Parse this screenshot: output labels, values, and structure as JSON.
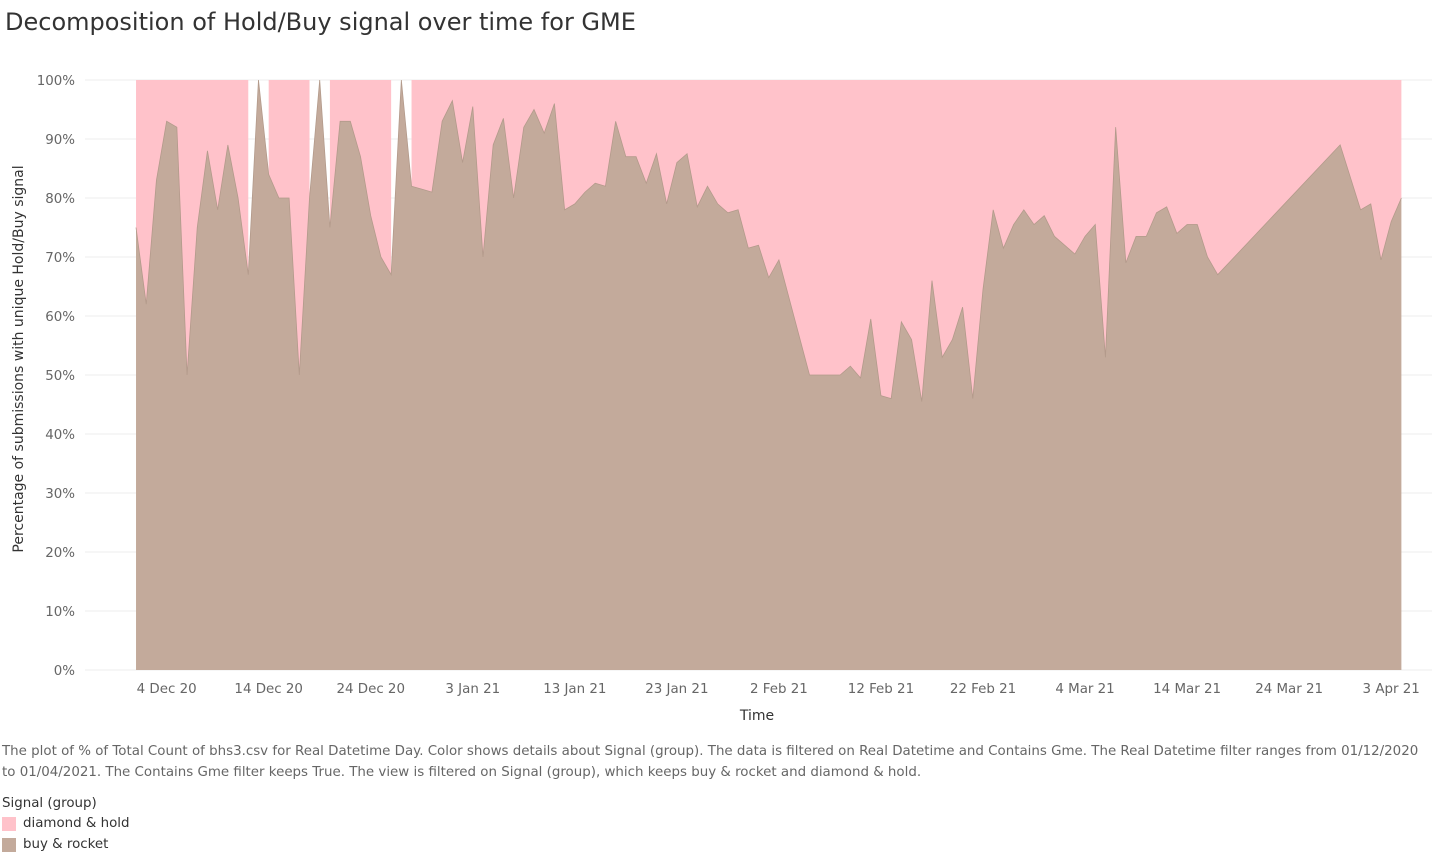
{
  "header": {
    "title": "Decomposition of Hold/Buy signal over time for GME"
  },
  "caption": "The plot of % of Total Count of bhs3.csv for Real Datetime Day.  Color shows details about Signal (group). The data is filtered on Real Datetime and Contains Gme. The Real Datetime filter ranges from 01/12/2020 to 01/04/2021. The Contains Gme filter keeps True. The view is filtered on Signal (group), which keeps buy & rocket and diamond & hold.",
  "legend": {
    "title": "Signal (group)",
    "items": [
      {
        "label": "diamond & hold",
        "color": "#ffc2ca"
      },
      {
        "label": "buy & rocket",
        "color": "#c3aa9b"
      }
    ]
  },
  "chart_data": {
    "type": "area",
    "stacked": true,
    "xlabel": "Time",
    "ylabel": "Percentage of submissions with unique Hold/Buy signal",
    "ylim": [
      0,
      100
    ],
    "yticks": [
      "100%",
      "90%",
      "80%",
      "70%",
      "60%",
      "50%",
      "40%",
      "30%",
      "20%",
      "10%",
      "0%"
    ],
    "xticks": [
      "4 Dec 20",
      "14 Dec 20",
      "24 Dec 20",
      "3 Jan 21",
      "13 Jan 21",
      "23 Jan 21",
      "2 Feb 21",
      "12 Feb 21",
      "22 Feb 21",
      "4 Mar 21",
      "14 Mar 21",
      "24 Mar 21",
      "3 Apr 21"
    ],
    "xtick_dates": [
      "2020-12-04",
      "2020-12-14",
      "2020-12-24",
      "2021-01-03",
      "2021-01-13",
      "2021-01-23",
      "2021-02-02",
      "2021-02-12",
      "2021-02-22",
      "2021-03-04",
      "2021-03-14",
      "2021-03-24",
      "2021-04-03"
    ],
    "xlim": [
      "2020-11-26",
      "2021-04-07"
    ],
    "grid": true,
    "series": [
      {
        "name": "buy & rocket",
        "color": "#c3aa9b",
        "points": [
          [
            "2020-12-01",
            75
          ],
          [
            "2020-12-02",
            62
          ],
          [
            "2020-12-03",
            83
          ],
          [
            "2020-12-04",
            93
          ],
          [
            "2020-12-05",
            92
          ],
          [
            "2020-12-06",
            50
          ],
          [
            "2020-12-07",
            75
          ],
          [
            "2020-12-08",
            88
          ],
          [
            "2020-12-09",
            78
          ],
          [
            "2020-12-10",
            89
          ],
          [
            "2020-12-11",
            80
          ],
          [
            "2020-12-12",
            67
          ],
          [
            "2020-12-13",
            100
          ],
          [
            "2020-12-14",
            84
          ],
          [
            "2020-12-15",
            80
          ],
          [
            "2020-12-16",
            80
          ],
          [
            "2020-12-17",
            50
          ],
          [
            "2020-12-18",
            80
          ],
          [
            "2020-12-19",
            100
          ],
          [
            "2020-12-20",
            75
          ],
          [
            "2020-12-21",
            93
          ],
          [
            "2020-12-22",
            93
          ],
          [
            "2020-12-23",
            87
          ],
          [
            "2020-12-24",
            77
          ],
          [
            "2020-12-25",
            70
          ],
          [
            "2020-12-26",
            67
          ],
          [
            "2020-12-27",
            100
          ],
          [
            "2020-12-28",
            82
          ],
          [
            "2020-12-29",
            81.5
          ],
          [
            "2020-12-30",
            81
          ],
          [
            "2020-12-31",
            93
          ],
          [
            "2021-01-01",
            96.5
          ],
          [
            "2021-01-02",
            86
          ],
          [
            "2021-01-03",
            95.5
          ],
          [
            "2021-01-04",
            70
          ],
          [
            "2021-01-05",
            89
          ],
          [
            "2021-01-06",
            93.5
          ],
          [
            "2021-01-07",
            80
          ],
          [
            "2021-01-08",
            92
          ],
          [
            "2021-01-09",
            95
          ],
          [
            "2021-01-10",
            91
          ],
          [
            "2021-01-11",
            96
          ],
          [
            "2021-01-12",
            78
          ],
          [
            "2021-01-13",
            79
          ],
          [
            "2021-01-14",
            81
          ],
          [
            "2021-01-15",
            82.5
          ],
          [
            "2021-01-16",
            82
          ],
          [
            "2021-01-17",
            93
          ],
          [
            "2021-01-18",
            87
          ],
          [
            "2021-01-19",
            87
          ],
          [
            "2021-01-20",
            82.5
          ],
          [
            "2021-01-21",
            87.5
          ],
          [
            "2021-01-22",
            79
          ],
          [
            "2021-01-23",
            86
          ],
          [
            "2021-01-24",
            87.5
          ],
          [
            "2021-01-25",
            78.5
          ],
          [
            "2021-01-26",
            82
          ],
          [
            "2021-01-27",
            79
          ],
          [
            "2021-01-28",
            77.5
          ],
          [
            "2021-01-29",
            78
          ],
          [
            "2021-01-30",
            71.5
          ],
          [
            "2021-01-31",
            72
          ],
          [
            "2021-02-01",
            66.5
          ],
          [
            "2021-02-02",
            69.5
          ],
          [
            "2021-02-05",
            50
          ],
          [
            "2021-02-08",
            50
          ],
          [
            "2021-02-09",
            51.5
          ],
          [
            "2021-02-10",
            49.5
          ],
          [
            "2021-02-11",
            59.5
          ],
          [
            "2021-02-12",
            46.5
          ],
          [
            "2021-02-13",
            46
          ],
          [
            "2021-02-14",
            59
          ],
          [
            "2021-02-15",
            56
          ],
          [
            "2021-02-16",
            45.5
          ],
          [
            "2021-02-17",
            66
          ],
          [
            "2021-02-18",
            53
          ],
          [
            "2021-02-19",
            56
          ],
          [
            "2021-02-20",
            61.5
          ],
          [
            "2021-02-21",
            46
          ],
          [
            "2021-02-22",
            64.5
          ],
          [
            "2021-02-23",
            78
          ],
          [
            "2021-02-24",
            71.5
          ],
          [
            "2021-02-25",
            75.5
          ],
          [
            "2021-02-26",
            78
          ],
          [
            "2021-02-27",
            75.5
          ],
          [
            "2021-02-28",
            77
          ],
          [
            "2021-03-01",
            73.5
          ],
          [
            "2021-03-02",
            72
          ],
          [
            "2021-03-03",
            70.5
          ],
          [
            "2021-03-04",
            73.5
          ],
          [
            "2021-03-05",
            75.5
          ],
          [
            "2021-03-06",
            53
          ],
          [
            "2021-03-07",
            92
          ],
          [
            "2021-03-08",
            69
          ],
          [
            "2021-03-09",
            73.5
          ],
          [
            "2021-03-10",
            73.5
          ],
          [
            "2021-03-11",
            77.5
          ],
          [
            "2021-03-12",
            78.5
          ],
          [
            "2021-03-13",
            74
          ],
          [
            "2021-03-14",
            75.5
          ],
          [
            "2021-03-15",
            75.5
          ],
          [
            "2021-03-16",
            70
          ],
          [
            "2021-03-17",
            67
          ],
          [
            "2021-03-29",
            89
          ],
          [
            "2021-03-31",
            78
          ],
          [
            "2021-04-01",
            79
          ],
          [
            "2021-04-02",
            69.5
          ],
          [
            "2021-04-03",
            76
          ],
          [
            "2021-04-04",
            80
          ]
        ]
      },
      {
        "name": "diamond & hold",
        "color": "#ffc2ca",
        "note": "remainder to 100%; absent on days where buy & rocket is 100%",
        "gap_dates": [
          "2020-12-13",
          "2020-12-19",
          "2020-12-27"
        ]
      }
    ]
  }
}
